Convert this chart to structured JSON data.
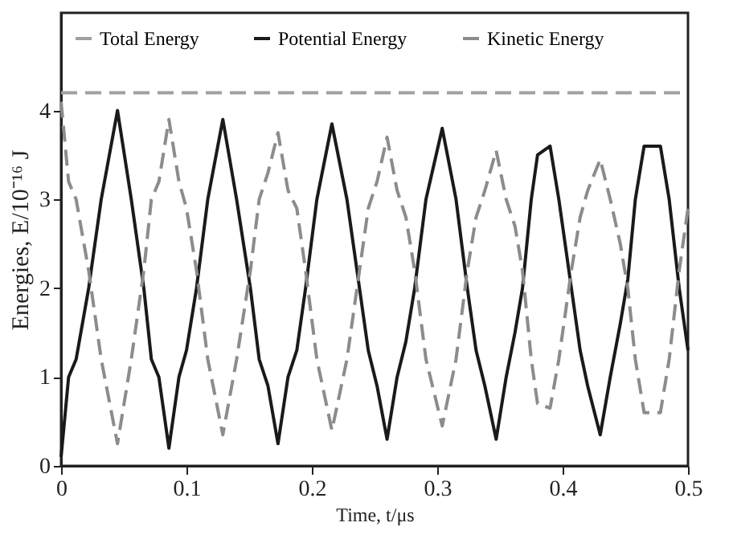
{
  "chart_data": {
    "type": "line",
    "xlabel": "Time, t/μs",
    "ylabel": "Energies, E/10⁻¹⁶ J",
    "xlim": [
      0,
      0.5
    ],
    "xticks": [
      0,
      0.1,
      0.2,
      0.3,
      0.4,
      0.5
    ],
    "ylim": [
      0,
      5.1
    ],
    "yticks": [
      0,
      1,
      2,
      3,
      4
    ],
    "grid": false,
    "legend": "top",
    "marker": "none",
    "x": [
      0,
      0.006,
      0.012,
      0.022,
      0.032,
      0.045,
      0.056,
      0.066,
      0.072,
      0.078,
      0.086,
      0.094,
      0.1,
      0.108,
      0.117,
      0.129,
      0.14,
      0.151,
      0.158,
      0.165,
      0.173,
      0.181,
      0.188,
      0.195,
      0.204,
      0.216,
      0.228,
      0.238,
      0.245,
      0.252,
      0.26,
      0.268,
      0.275,
      0.282,
      0.291,
      0.304,
      0.315,
      0.324,
      0.331,
      0.338,
      0.347,
      0.355,
      0.362,
      0.368,
      0.375,
      0.38,
      0.39,
      0.397,
      0.407,
      0.414,
      0.42,
      0.43,
      0.438,
      0.446,
      0.452,
      0.458,
      0.465,
      0.478,
      0.485,
      0.493,
      0.5
    ],
    "series": [
      {
        "name": "Total Energy",
        "color": "#a0a0a0",
        "line_style": "dashed",
        "x": [
          0,
          0.5
        ],
        "values": [
          4.2,
          4.2
        ]
      },
      {
        "name": "Potential Energy",
        "color": "#1a1a1a",
        "line_style": "solid",
        "values": [
          0.1,
          1.0,
          1.2,
          2.0,
          3.0,
          4.0,
          3.0,
          2.0,
          1.2,
          1.0,
          0.2,
          1.0,
          1.3,
          2.0,
          3.0,
          3.9,
          3.0,
          2.0,
          1.2,
          0.9,
          0.25,
          1.0,
          1.3,
          2.0,
          3.0,
          3.85,
          3.0,
          2.0,
          1.3,
          0.9,
          0.3,
          1.0,
          1.4,
          2.0,
          3.0,
          3.8,
          3.0,
          2.0,
          1.3,
          0.9,
          0.3,
          1.0,
          1.5,
          2.0,
          3.0,
          3.5,
          3.6,
          3.0,
          2.0,
          1.3,
          0.9,
          0.35,
          1.0,
          1.6,
          2.1,
          3.0,
          3.6,
          3.6,
          3.0,
          2.0,
          1.3
        ]
      },
      {
        "name": "Kinetic Energy",
        "color": "#8c8c8c",
        "line_style": "dashed",
        "values": [
          4.1,
          3.2,
          3.0,
          2.2,
          1.2,
          0.25,
          1.2,
          2.2,
          3.0,
          3.2,
          3.9,
          3.2,
          2.9,
          2.2,
          1.2,
          0.35,
          1.2,
          2.2,
          3.0,
          3.3,
          3.75,
          3.1,
          2.9,
          2.2,
          1.2,
          0.4,
          1.2,
          2.2,
          2.9,
          3.2,
          3.7,
          3.1,
          2.8,
          2.2,
          1.2,
          0.45,
          1.2,
          2.2,
          2.8,
          3.1,
          3.55,
          3.0,
          2.7,
          2.2,
          1.2,
          0.7,
          0.65,
          1.2,
          2.2,
          2.8,
          3.1,
          3.45,
          3.0,
          2.5,
          2.0,
          1.2,
          0.6,
          0.6,
          1.2,
          2.2,
          2.9
        ]
      }
    ]
  }
}
